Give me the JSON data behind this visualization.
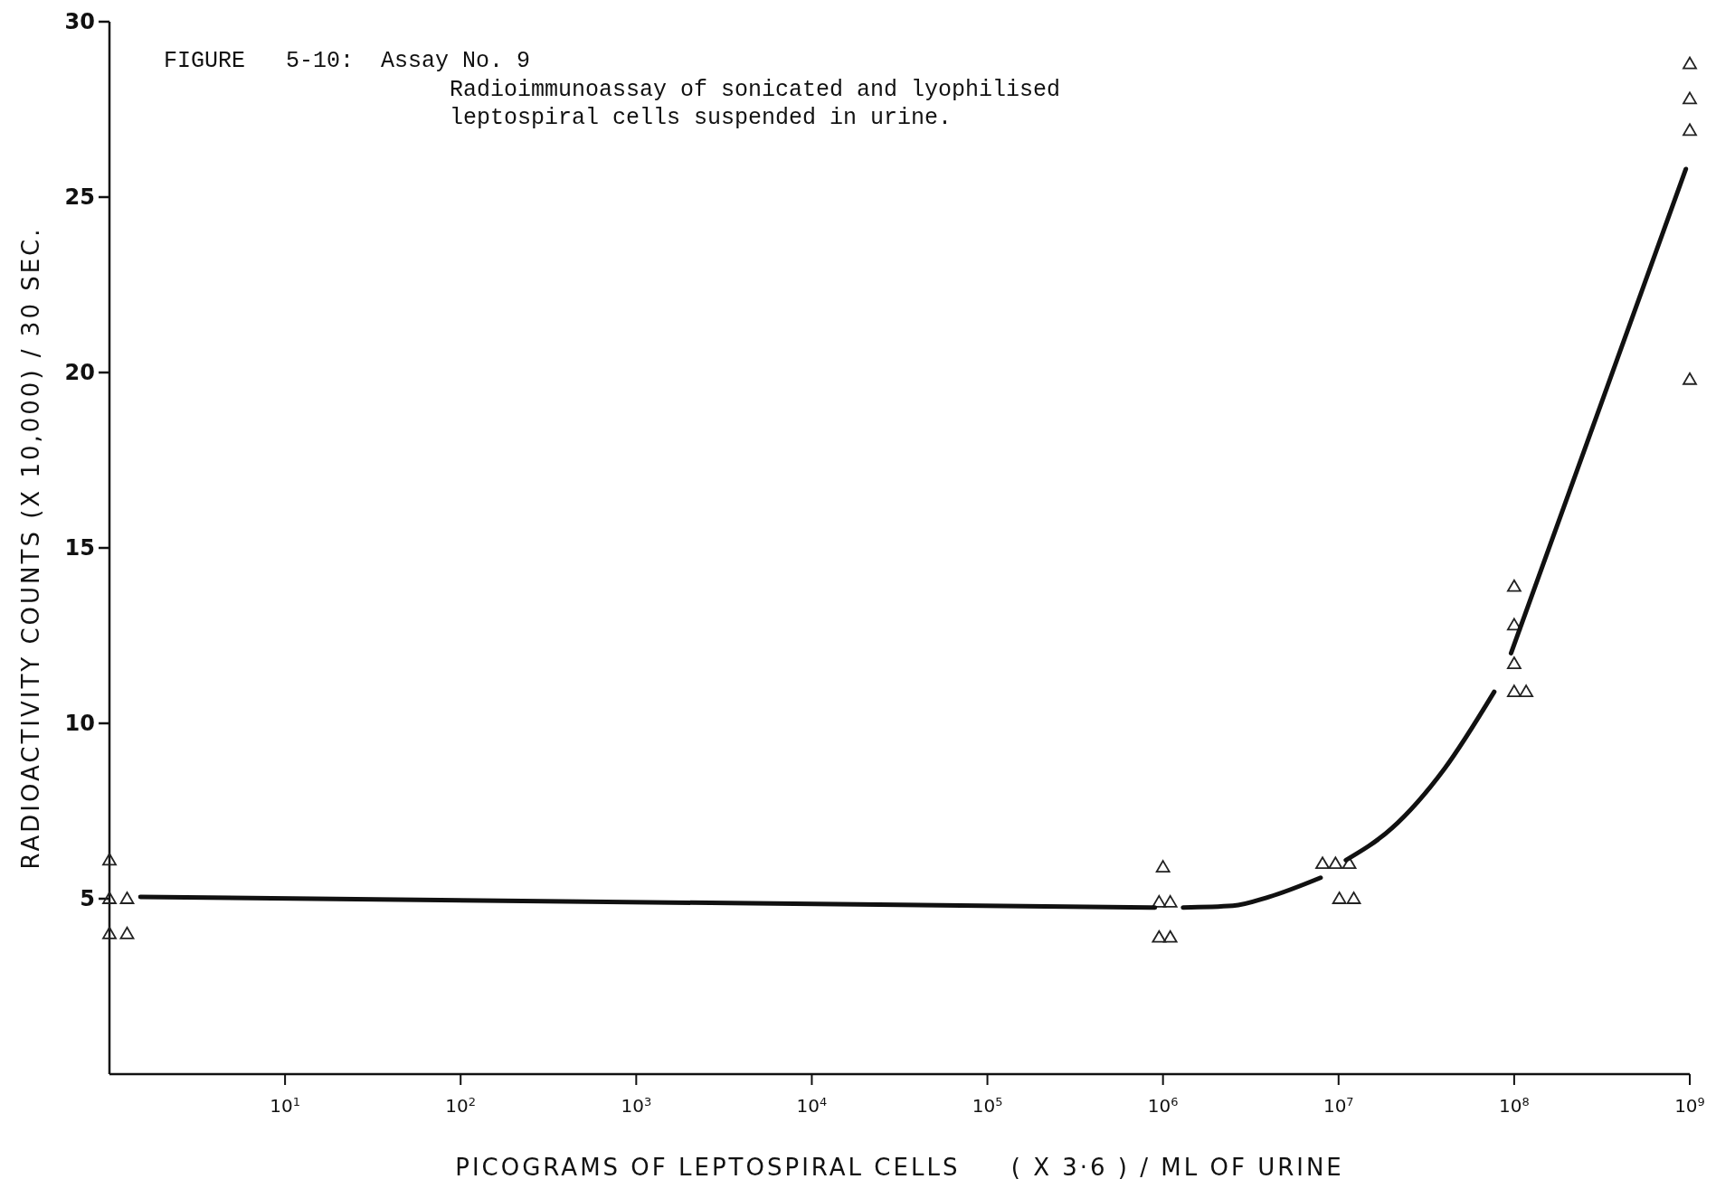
{
  "chart_data": {
    "type": "scatter",
    "title": "FIGURE   5-10:  Assay No. 9",
    "subtitle": "Radioimmunoassay of sonicated and lyophilised leptospiral cells suspended in urine.",
    "xlabel": "PICOGRAMS OF LEPTOSPIRAL CELLS     ( X 3·6 ) / ML OF URINE",
    "ylabel": "RADIOACTIVITY COUNTS (X 10,000) / 30 SEC.",
    "log": "x",
    "grid": false,
    "marker": "triangle",
    "xlim": [
      1,
      1000000000
    ],
    "ylim": [
      0,
      30
    ],
    "xticks": [
      {
        "value": 10,
        "label": "10$^{1}$"
      },
      {
        "value": 100,
        "label": "10$^{2}$"
      },
      {
        "value": 1000,
        "label": "10$^{3}$"
      },
      {
        "value": 10000,
        "label": "10$^{4}$"
      },
      {
        "value": 100000,
        "label": "10$^{5}$"
      },
      {
        "value": 1000000,
        "label": "10$^{6}$"
      },
      {
        "value": 10000000,
        "label": "10$^{7}$"
      },
      {
        "value": 100000000,
        "label": "10$^{8}$"
      },
      {
        "value": 1000000000,
        "label": "10$^{9}$"
      }
    ],
    "yticks": [
      5,
      10,
      15,
      20,
      25,
      30
    ],
    "series": [
      {
        "color": "#222222",
        "x": [
          1,
          1,
          1,
          1.26,
          1.26,
          1000000,
          950000,
          1100000,
          950000,
          1100000,
          8100000,
          9600000,
          11500000,
          10100000,
          12200000,
          100000000,
          100000000,
          100000000,
          100000000,
          117000000,
          1000000000,
          1000000000,
          1000000000,
          1000000000
        ],
        "values": [
          6.1,
          5,
          4,
          5,
          4,
          5.9,
          4.9,
          4.9,
          3.9,
          3.9,
          6,
          6,
          6,
          5,
          5,
          13.9,
          12.8,
          11.7,
          10.9,
          10.9,
          28.8,
          27.8,
          26.9,
          19.8
        ]
      },
      {
        "type": "line",
        "color": "#111111",
        "line_style": "solid",
        "marker": "none",
        "x": [
          1.5,
          900000,
          1000000,
          1300000,
          2500000,
          4000000,
          7900000,
          9000000,
          11000000,
          20000000,
          40000000,
          77000000,
          85000000,
          96000000,
          950000000
        ],
        "values": [
          5.05,
          4.75,
          null,
          4.75,
          4.8,
          5.05,
          5.6,
          null,
          6.1,
          7.0,
          8.7,
          10.9,
          null,
          12.0,
          25.8
        ]
      }
    ]
  }
}
